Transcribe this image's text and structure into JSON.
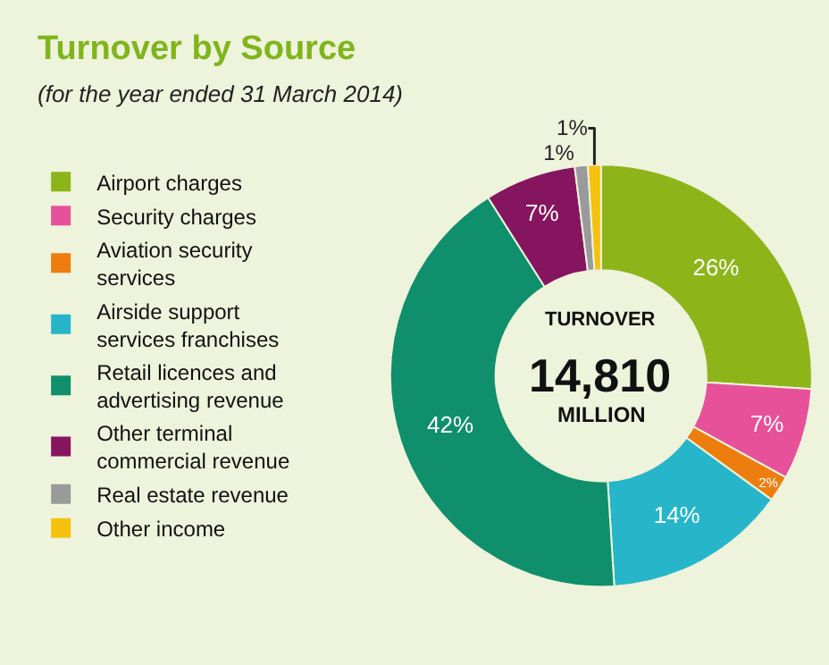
{
  "chart_data": {
    "type": "donut",
    "title": "Turnover by Source",
    "subtitle": "(for the year ended 31 March 2014)",
    "categories": [
      "Airport charges",
      "Security charges",
      "Aviation security services",
      "Airside support services franchises",
      "Retail licences and advertising revenue",
      "Other terminal commercial revenue",
      "Real estate revenue",
      "Other income"
    ],
    "values": [
      26,
      7,
      2,
      14,
      42,
      7,
      1,
      1
    ],
    "value_labels": [
      "26%",
      "7%",
      "2%",
      "14%",
      "42%",
      "7%",
      "1%",
      "1%"
    ],
    "colors": [
      "#8db51a",
      "#e6519a",
      "#ee7d0f",
      "#27b5c9",
      "#0f8f6b",
      "#86155f",
      "#9a9a9a",
      "#f4c20e"
    ],
    "annotations": [
      "TURNOVER",
      "14,810",
      "MILLION"
    ],
    "legend": "left"
  }
}
